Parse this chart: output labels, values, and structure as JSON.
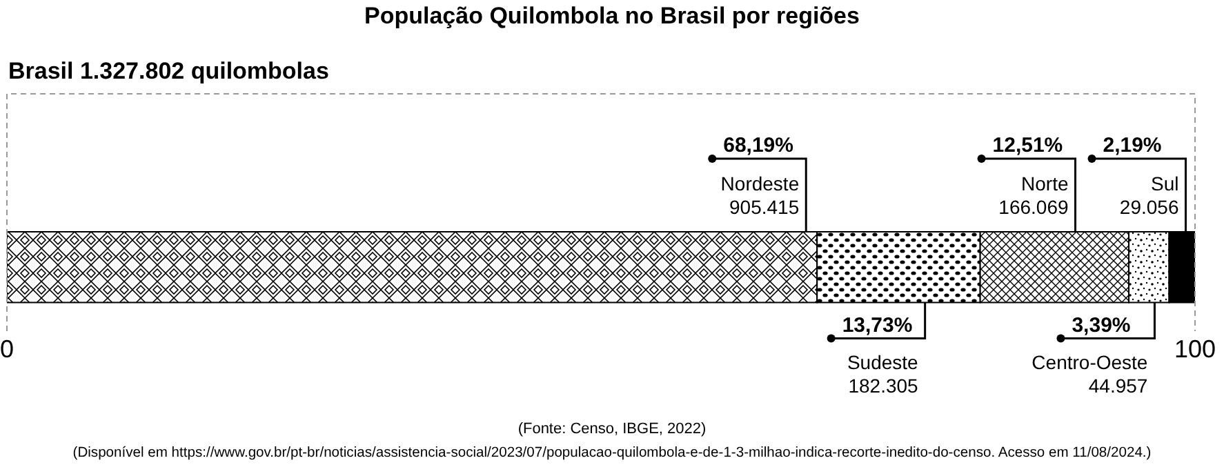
{
  "chart_data": {
    "type": "bar",
    "orientation": "horizontal",
    "stacked": true,
    "title": "População Quilombola no Brasil por regiões",
    "subtitle": "Brasil 1.327.802 quilombolas",
    "categories": [
      null
    ],
    "xlim": [
      0,
      100
    ],
    "xticks": [
      0,
      100
    ],
    "series": [
      {
        "name": "Nordeste",
        "color": "#000000",
        "values": [
          68.19
        ],
        "value_labels": [
          "68,19%"
        ]
      },
      {
        "name": "Sudeste",
        "color": "#000000",
        "values": [
          13.73
        ],
        "value_labels": [
          "13,73%"
        ]
      },
      {
        "name": "Norte",
        "color": "#000000",
        "values": [
          12.51
        ],
        "value_labels": [
          "12,51%"
        ]
      },
      {
        "name": "Centro-Oeste",
        "color": "#000000",
        "values": [
          3.39
        ],
        "value_labels": [
          "3,39%"
        ]
      },
      {
        "name": "Sul",
        "color": "#000000",
        "values": [
          2.19
        ],
        "value_labels": [
          "2,19%"
        ]
      }
    ],
    "annotations": [
      "905.415",
      "182.305",
      "166.069",
      "44.957",
      "29.056",
      "(Fonte: Censo, IBGE, 2022)",
      "(Disponível em https://www.gov.br/pt-br/noticias/assistencia-social/2023/07/populacao-quilombola-e-de-1-3-milhao-indica-recorte-inedito-do-censo. Acesso em 11/08/2024.)"
    ]
  }
}
